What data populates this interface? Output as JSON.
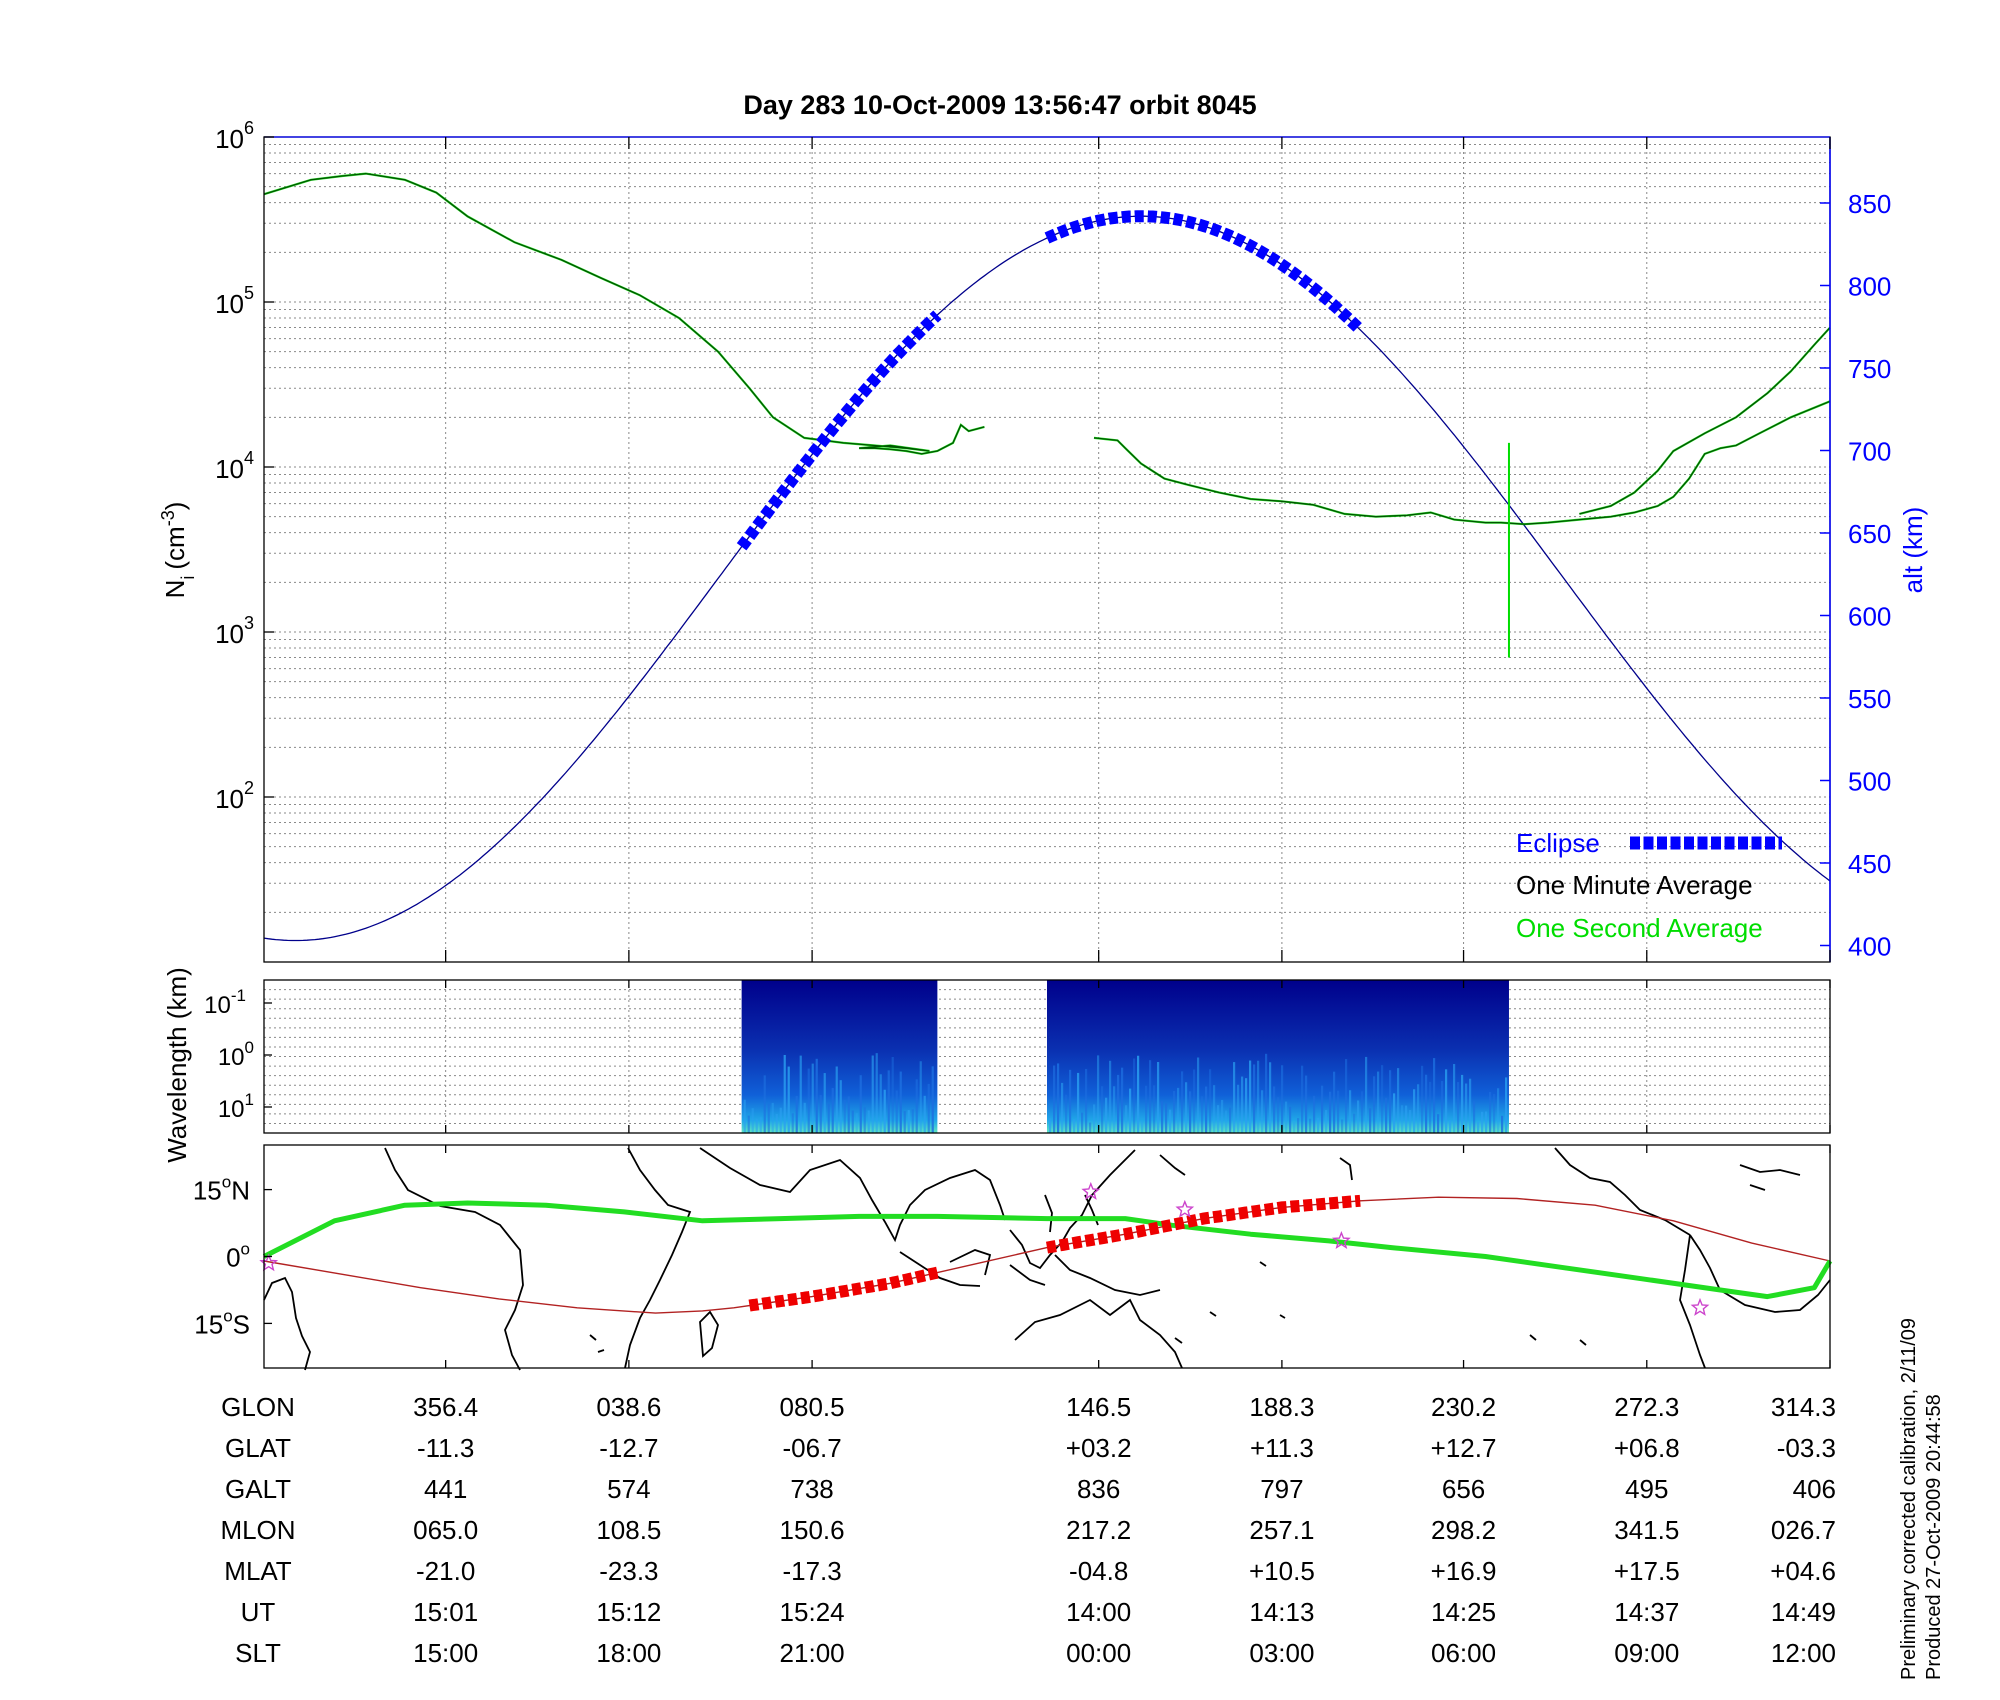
{
  "title": "Day 283  10-Oct-2009 13:56:47   orbit 8045",
  "side_note": {
    "line1": "Preliminary corrected calibration, 2/11/09",
    "line2": "Produced 27-Oct-2009 20:44:58"
  },
  "colors": {
    "eclipse": "#0000ff",
    "one_minute": "#000000",
    "one_second": "#00dd00",
    "density_trace": "#005500",
    "altitude": "#00008b",
    "right_axis": "#0000ff",
    "ground_track": "#b22222",
    "ground_track_eclipse": "#ee0000",
    "mag_equator": "#22dd22",
    "star_marker": "#cc44cc"
  },
  "chart_data": [
    {
      "type": "line",
      "panel": "density-and-altitude",
      "ylabel": "N",
      "ylabel_sub": "i",
      "ylabel_unit": "(cm",
      "ylabel_unit_sup": "-3",
      "ylabel_close": ")",
      "yscale": "log",
      "ylim": [
        10,
        1000000
      ],
      "yticks": [
        {
          "base": "10",
          "exp": "2",
          "value": 100
        },
        {
          "base": "10",
          "exp": "3",
          "value": 1000
        },
        {
          "base": "10",
          "exp": "4",
          "value": 10000
        },
        {
          "base": "10",
          "exp": "5",
          "value": 100000
        },
        {
          "base": "10",
          "exp": "6",
          "value": 1000000
        }
      ],
      "y2label": "alt (km)",
      "y2lim": [
        390,
        890
      ],
      "y2ticks": [
        "400",
        "450",
        "500",
        "550",
        "600",
        "650",
        "700",
        "750",
        "800",
        "850"
      ],
      "x_fraction_range": [
        0,
        1
      ],
      "legend": {
        "position": "bottom-right",
        "items": [
          {
            "label": "Eclipse",
            "color": "#0000ff",
            "style": "dashed-thick"
          },
          {
            "label": "One Minute Average",
            "color": "#000000",
            "style": "none"
          },
          {
            "label": "One Second Average",
            "color": "#00dd00",
            "style": "none"
          }
        ]
      },
      "series": [
        {
          "key": "density",
          "axis": "left",
          "segments": [
            [
              [
                0,
                450000
              ],
              [
                0.03,
                550000
              ],
              [
                0.05,
                580000
              ],
              [
                0.065,
                600000
              ],
              [
                0.09,
                550000
              ],
              [
                0.11,
                460000
              ],
              [
                0.13,
                330000
              ],
              [
                0.16,
                230000
              ],
              [
                0.19,
                180000
              ],
              [
                0.215,
                140000
              ],
              [
                0.24,
                110000
              ],
              [
                0.265,
                80000
              ],
              [
                0.29,
                50000
              ],
              [
                0.31,
                30000
              ],
              [
                0.325,
                20000
              ],
              [
                0.345,
                15000
              ],
              [
                0.37,
                14000
              ],
              [
                0.39,
                13500
              ],
              [
                0.41,
                13000
              ],
              [
                0.425,
                12500
              ],
              [
                0.4,
                13500
              ],
              [
                0.38,
                13000
              ],
              [
                0.39,
                13000
              ],
              [
                0.4,
                12800
              ],
              [
                0.41,
                12500
              ],
              [
                0.42,
                12000
              ],
              [
                0.43,
                12500
              ],
              [
                0.44,
                14000
              ],
              [
                0.445,
                18000
              ],
              [
                0.45,
                16500
              ],
              [
                0.46,
                17500
              ]
            ],
            [
              [
                0.53,
                15000
              ],
              [
                0.545,
                14500
              ],
              [
                0.55,
                13000
              ],
              [
                0.56,
                10500
              ],
              [
                0.575,
                8500
              ],
              [
                0.59,
                7800
              ],
              [
                0.61,
                7000
              ],
              [
                0.63,
                6400
              ],
              [
                0.65,
                6200
              ],
              [
                0.67,
                5900
              ],
              [
                0.69,
                5200
              ],
              [
                0.71,
                5000
              ],
              [
                0.73,
                5100
              ],
              [
                0.745,
                5300
              ],
              [
                0.76,
                4800
              ],
              [
                0.78,
                4600
              ],
              [
                0.79,
                4600
              ],
              [
                0.805,
                4500
              ],
              [
                0.82,
                4600
              ],
              [
                0.84,
                4800
              ],
              [
                0.86,
                5000
              ],
              [
                0.875,
                5300
              ],
              [
                0.89,
                5800
              ],
              [
                0.9,
                6600
              ],
              [
                0.91,
                8500
              ],
              [
                0.92,
                12000
              ],
              [
                0.93,
                13000
              ],
              [
                0.94,
                13500
              ],
              [
                0.955,
                16000
              ],
              [
                0.975,
                20000
              ],
              [
                1.0,
                25000
              ]
            ]
          ]
        },
        {
          "key": "density_upper",
          "axis": "left",
          "segments": [
            [
              [
                0.84,
                5200
              ],
              [
                0.86,
                5800
              ],
              [
                0.875,
                7000
              ],
              [
                0.89,
                9500
              ],
              [
                0.9,
                12500
              ],
              [
                0.92,
                16000
              ],
              [
                0.94,
                20000
              ],
              [
                0.96,
                28000
              ],
              [
                0.975,
                38000
              ],
              [
                0.99,
                55000
              ],
              [
                1.0,
                70000
              ]
            ]
          ]
        },
        {
          "key": "altitude",
          "axis": "right",
          "curve": "sinusoid",
          "min_alt": 403,
          "max_alt": 842,
          "min_x": 0.02,
          "max_x": 0.56
        },
        {
          "key": "eclipse",
          "axis": "right",
          "segments": [
            [
              0.305,
              0.43
            ],
            [
              0.5,
              0.7
            ]
          ]
        },
        {
          "key": "spike",
          "axis": "left",
          "x": 0.795,
          "range": [
            700,
            14000
          ]
        }
      ]
    },
    {
      "type": "heatmap",
      "panel": "wavelength-spectrogram",
      "ylabel": "Wavelength (km)",
      "yticks": [
        {
          "base": "10",
          "exp": "-1"
        },
        {
          "base": "10",
          "exp": "0"
        },
        {
          "base": "10",
          "exp": "1"
        }
      ],
      "blocks": [
        [
          0.305,
          0.43
        ],
        [
          0.5,
          0.795
        ]
      ]
    },
    {
      "type": "line",
      "panel": "ground-track-map",
      "yticks": [
        {
          "value": "15",
          "hemisphere": "N"
        },
        {
          "value": "0",
          "hemisphere": ""
        },
        {
          "value": "15",
          "hemisphere": "S"
        }
      ],
      "ylim": [
        -25,
        25
      ],
      "series": [
        {
          "key": "ground_track",
          "points": [
            [
              0,
              -1
            ],
            [
              0.05,
              -4
            ],
            [
              0.1,
              -7
            ],
            [
              0.15,
              -9.5
            ],
            [
              0.2,
              -11.5
            ],
            [
              0.25,
              -12.7
            ],
            [
              0.28,
              -12.2
            ],
            [
              0.3,
              -11.5
            ],
            [
              0.35,
              -9
            ],
            [
              0.4,
              -6
            ],
            [
              0.45,
              -2
            ],
            [
              0.5,
              2
            ],
            [
              0.55,
              5
            ],
            [
              0.6,
              8.5
            ],
            [
              0.65,
              11
            ],
            [
              0.7,
              12.5
            ],
            [
              0.75,
              13.3
            ],
            [
              0.8,
              13
            ],
            [
              0.85,
              11.5
            ],
            [
              0.9,
              8
            ],
            [
              0.95,
              3
            ],
            [
              1.0,
              -1
            ]
          ]
        },
        {
          "key": "ground_track_eclipse",
          "segments": [
            [
              0.31,
              0.43
            ],
            [
              0.5,
              0.7
            ]
          ]
        },
        {
          "key": "mag_equator",
          "points": [
            [
              0,
              0
            ],
            [
              0.045,
              8
            ],
            [
              0.09,
              11.5
            ],
            [
              0.13,
              12
            ],
            [
              0.18,
              11.5
            ],
            [
              0.23,
              10
            ],
            [
              0.28,
              8
            ],
            [
              0.33,
              8.5
            ],
            [
              0.38,
              9
            ],
            [
              0.43,
              9
            ],
            [
              0.5,
              8.5
            ],
            [
              0.55,
              8.5
            ],
            [
              0.58,
              7
            ],
            [
              0.63,
              5
            ],
            [
              0.68,
              3.5
            ],
            [
              0.72,
              2
            ],
            [
              0.78,
              0
            ],
            [
              0.83,
              -2.5
            ],
            [
              0.88,
              -5
            ],
            [
              0.93,
              -7.5
            ],
            [
              0.96,
              -9
            ],
            [
              0.99,
              -7
            ],
            [
              1.0,
              -1
            ]
          ]
        },
        {
          "key": "stars",
          "points": [
            [
              0.003,
              -1.5
            ],
            [
              0.528,
              14.5
            ],
            [
              0.588,
              10.5
            ],
            [
              0.688,
              3.5
            ],
            [
              0.917,
              -11.5
            ]
          ]
        }
      ]
    },
    {
      "type": "table",
      "panel": "orbit-coordinates",
      "rows": [
        {
          "label": "GLON",
          "values": [
            "356.4",
            "038.6",
            "080.5",
            "146.5",
            "188.3",
            "230.2",
            "272.3",
            "314.3"
          ]
        },
        {
          "label": "GLAT",
          "values": [
            "-11.3",
            "-12.7",
            "-06.7",
            "+03.2",
            "+11.3",
            "+12.7",
            "+06.8",
            "-03.3"
          ]
        },
        {
          "label": "GALT",
          "values": [
            "441",
            "574",
            "738",
            "836",
            "797",
            "656",
            "495",
            "406"
          ]
        },
        {
          "label": "MLON",
          "values": [
            "065.0",
            "108.5",
            "150.6",
            "217.2",
            "257.1",
            "298.2",
            "341.5",
            "026.7"
          ]
        },
        {
          "label": "MLAT",
          "values": [
            "-21.0",
            "-23.3",
            "-17.3",
            "-04.8",
            "+10.5",
            "+16.9",
            "+17.5",
            "+04.6"
          ]
        },
        {
          "label": "UT",
          "values": [
            "15:01",
            "15:12",
            "15:24",
            "14:00",
            "14:13",
            "14:25",
            "14:37",
            "14:49"
          ]
        },
        {
          "label": "SLT",
          "values": [
            "15:00",
            "18:00",
            "21:00",
            "00:00",
            "03:00",
            "06:00",
            "09:00",
            "12:00"
          ]
        }
      ],
      "column_x_fraction": [
        0.116,
        0.233,
        0.35,
        0.533,
        0.65,
        0.766,
        0.883,
        1.0
      ]
    }
  ]
}
